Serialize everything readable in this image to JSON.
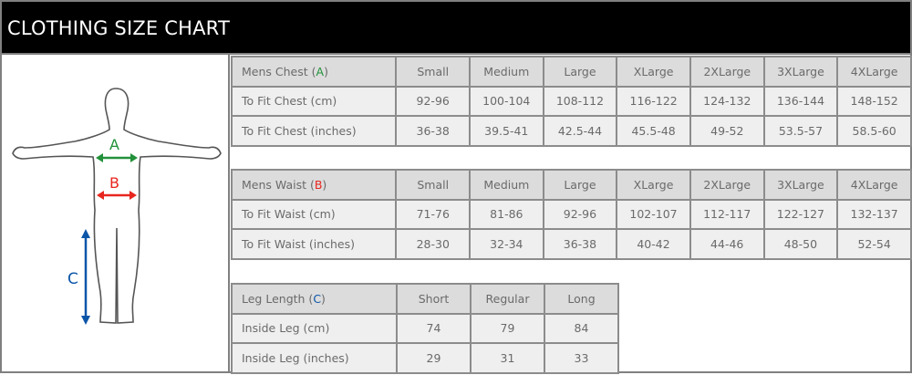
{
  "title": "CLOTHING SIZE CHART",
  "colors": {
    "A": "#22913a",
    "B": "#e8261e",
    "C": "#0a55a8"
  },
  "figure": {
    "labels": {
      "A": "A",
      "B": "B",
      "C": "C"
    }
  },
  "chest": {
    "header": {
      "label": "Mens Chest (",
      "letter": "A",
      "close": ")",
      "sizes": [
        "Small",
        "Medium",
        "Large",
        "XLarge",
        "2XLarge",
        "3XLarge",
        "4XLarge"
      ]
    },
    "rows": [
      {
        "label": "To Fit Chest (cm)",
        "values": [
          "92-96",
          "100-104",
          "108-112",
          "116-122",
          "124-132",
          "136-144",
          "148-152"
        ]
      },
      {
        "label": "To Fit Chest (inches)",
        "values": [
          "36-38",
          "39.5-41",
          "42.5-44",
          "45.5-48",
          "49-52",
          "53.5-57",
          "58.5-60"
        ]
      }
    ]
  },
  "waist": {
    "header": {
      "label": "Mens Waist (",
      "letter": "B",
      "close": ")",
      "sizes": [
        "Small",
        "Medium",
        "Large",
        "XLarge",
        "2XLarge",
        "3XLarge",
        "4XLarge"
      ]
    },
    "rows": [
      {
        "label": "To Fit Waist (cm)",
        "values": [
          "71-76",
          "81-86",
          "92-96",
          "102-107",
          "112-117",
          "122-127",
          "132-137"
        ]
      },
      {
        "label": "To Fit Waist (inches)",
        "values": [
          "28-30",
          "32-34",
          "36-38",
          "40-42",
          "44-46",
          "48-50",
          "52-54"
        ]
      }
    ]
  },
  "leg": {
    "header": {
      "label": "Leg Length (",
      "letter": "C",
      "close": ")",
      "sizes": [
        "Short",
        "Regular",
        "Long"
      ]
    },
    "rows": [
      {
        "label": "Inside Leg (cm)",
        "values": [
          "74",
          "79",
          "84"
        ]
      },
      {
        "label": "Inside Leg (inches)",
        "values": [
          "29",
          "31",
          "33"
        ]
      }
    ]
  }
}
